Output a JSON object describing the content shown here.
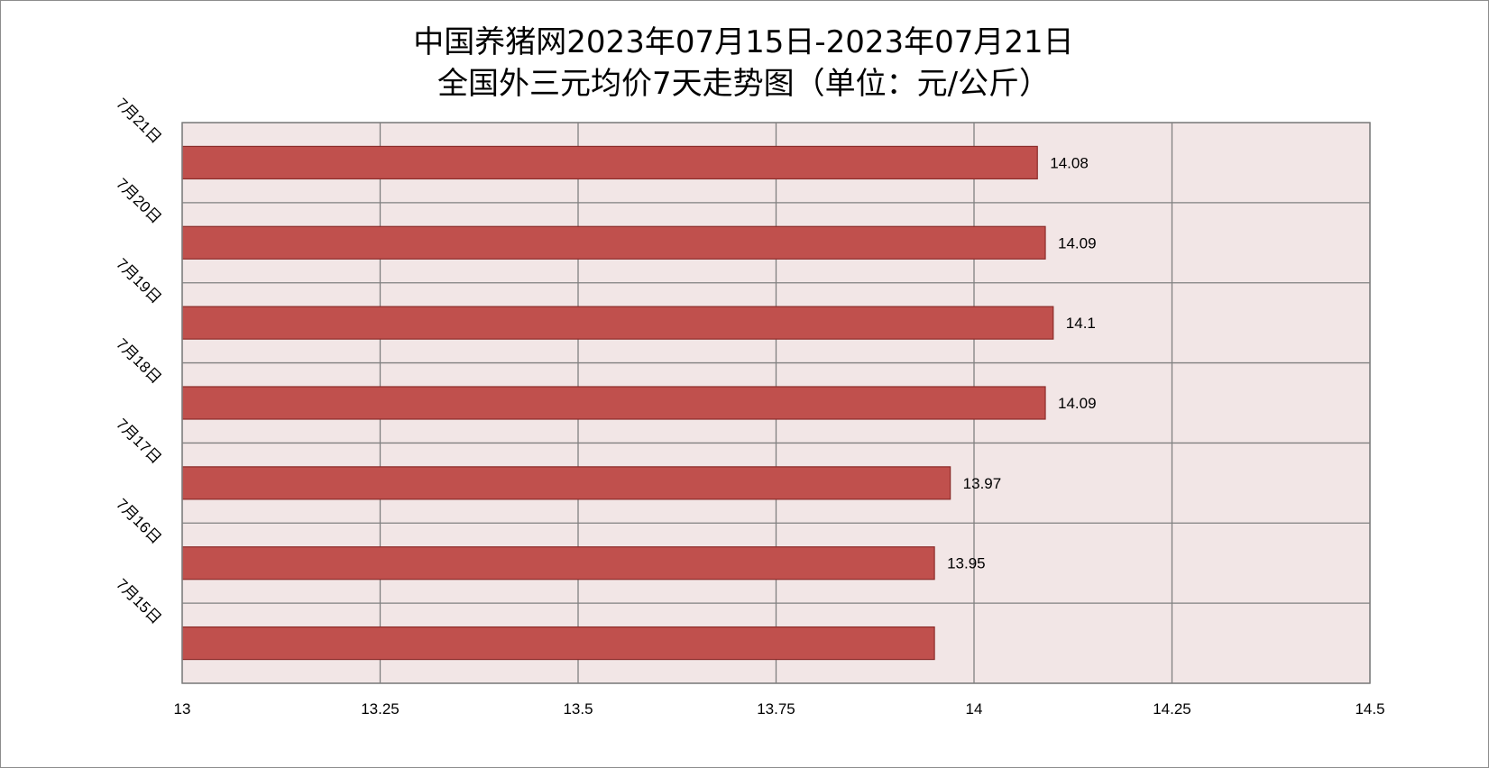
{
  "chart_data": {
    "type": "bar",
    "orientation": "horizontal",
    "title_line1": "中国养猪网2023年07月15日-2023年07月21日",
    "title_line2": "全国外三元均价7天走势图（单位：元/公斤）",
    "categories": [
      "7月15日",
      "7月16日",
      "7月17日",
      "7月18日",
      "7月19日",
      "7月20日",
      "7月21日"
    ],
    "values": [
      13.95,
      13.95,
      13.97,
      14.09,
      14.1,
      14.09,
      14.08
    ],
    "data_labels": [
      "",
      "13.95",
      "13.97",
      "14.09",
      "14.1",
      "14.09",
      "14.08"
    ],
    "xlim": [
      13,
      14.5
    ],
    "xticks": [
      "13",
      "13.25",
      "13.5",
      "13.75",
      "14",
      "14.25",
      "14.5"
    ],
    "grid": true,
    "colors": {
      "bar": "#c0504d",
      "bar_border": "#8b2c2a",
      "plot_bg": "#f2e6e6",
      "grid": "#808080"
    }
  }
}
